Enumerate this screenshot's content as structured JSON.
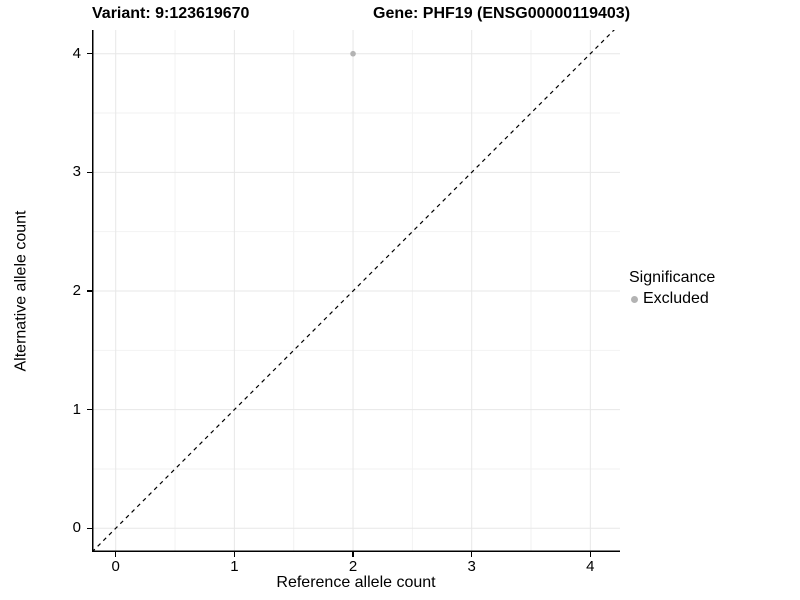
{
  "header": {
    "variant_title": "Variant: 9:123619670",
    "gene_title": "Gene: PHF19 (ENSG00000119403)"
  },
  "chart_data": {
    "type": "scatter",
    "xlabel": "Reference allele count",
    "ylabel": "Alternative allele count",
    "xlim": [
      -0.2,
      4.25
    ],
    "ylim": [
      -0.2,
      4.2
    ],
    "xticks": [
      0,
      1,
      2,
      3,
      4
    ],
    "yticks": [
      0,
      1,
      2,
      3,
      4
    ],
    "minor_ticks_x": [
      0.5,
      1.5,
      2.5,
      3.5
    ],
    "minor_ticks_y": [
      0.5,
      1.5,
      2.5,
      3.5
    ],
    "grid": "major+minor",
    "identity_line": {
      "style": "dashed",
      "color": "#000000",
      "from": -0.2,
      "to": 4.25
    },
    "series": [
      {
        "name": "Excluded",
        "color": "#b3b3b3",
        "marker": "circle",
        "points": [
          {
            "x": 2,
            "y": 4
          }
        ]
      }
    ],
    "legend": {
      "title": "Significance",
      "position": "right",
      "items": [
        {
          "label": "Excluded",
          "color": "#b3b3b3"
        }
      ]
    }
  },
  "colors": {
    "background": "#ffffff",
    "axis_line": "#000000",
    "major_grid": "#e7e7e7",
    "minor_grid": "#f2f2f2",
    "text": "#000000"
  }
}
